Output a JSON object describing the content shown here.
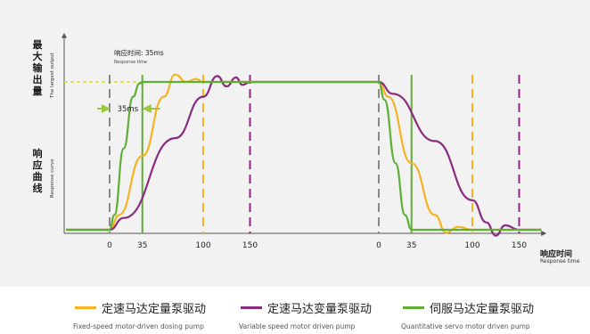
{
  "chart_data": {
    "type": "line",
    "y_axis_label_zh_top": "最大输出量",
    "y_axis_label_en_top": "The largest output",
    "y_axis_label_zh_bottom": "响应曲线",
    "y_axis_label_en_bottom": "Response curve",
    "x_axis_label_zh": "响应时间",
    "x_axis_label_en": "Response time",
    "annotation_title_zh": "响应时间: 35ms",
    "annotation_title_en": "Response time",
    "annotation_gap_label": "35ms",
    "rise_ticks": [
      0,
      35,
      100,
      150
    ],
    "fall_ticks": [
      0,
      35,
      100,
      150
    ],
    "tick_labels_rise": [
      "0",
      "35",
      "100",
      "150"
    ],
    "tick_labels_fall": [
      "0",
      "35",
      "100",
      "150"
    ],
    "ylim": [
      0,
      1
    ],
    "series": [
      {
        "key": "fixed",
        "name_zh": "定速马达定量泵驱动",
        "name_en": "Fixed-speed motor-driven dosing pump",
        "color": "#f5b324",
        "settle_rise_ms": 100,
        "settle_fall_ms": 100,
        "rise": [
          [
            0,
            0
          ],
          [
            10,
            0.1
          ],
          [
            35,
            0.5
          ],
          [
            58,
            0.9
          ],
          [
            70,
            1.05
          ],
          [
            82,
            1.0
          ],
          [
            92,
            1.02
          ],
          [
            100,
            1.0
          ]
        ],
        "fall": [
          [
            0,
            1.0
          ],
          [
            10,
            0.9
          ],
          [
            35,
            0.45
          ],
          [
            60,
            0.1
          ],
          [
            72,
            -0.02
          ],
          [
            85,
            0.02
          ],
          [
            100,
            0.0
          ]
        ]
      },
      {
        "key": "variable",
        "name_zh": "定速马达变量泵驱动",
        "name_en": "Variable speed motor driven pump",
        "color": "#8a2b80",
        "settle_rise_ms": 150,
        "settle_fall_ms": 150,
        "rise": [
          [
            0,
            0
          ],
          [
            15,
            0.08
          ],
          [
            70,
            0.62
          ],
          [
            100,
            0.9
          ],
          [
            115,
            1.04
          ],
          [
            125,
            0.97
          ],
          [
            135,
            1.03
          ],
          [
            142,
            0.98
          ],
          [
            150,
            1.0
          ]
        ],
        "fall": [
          [
            0,
            1.0
          ],
          [
            15,
            0.92
          ],
          [
            60,
            0.6
          ],
          [
            100,
            0.2
          ],
          [
            115,
            0.05
          ],
          [
            125,
            -0.04
          ],
          [
            135,
            0.03
          ],
          [
            150,
            0.0
          ]
        ]
      },
      {
        "key": "servo",
        "name_zh": "伺服马达定量泵驱动",
        "name_en": "Quantitative servo motor driven pump",
        "color": "#5fae36",
        "settle_rise_ms": 35,
        "settle_fall_ms": 35,
        "rise": [
          [
            0,
            0
          ],
          [
            5,
            0.1
          ],
          [
            15,
            0.55
          ],
          [
            25,
            0.9
          ],
          [
            32,
            0.99
          ],
          [
            35,
            1.0
          ]
        ],
        "fall": [
          [
            0,
            1.0
          ],
          [
            6,
            0.88
          ],
          [
            18,
            0.45
          ],
          [
            28,
            0.1
          ],
          [
            35,
            0.0
          ]
        ]
      }
    ],
    "legend_position": "bottom",
    "grid": false
  }
}
